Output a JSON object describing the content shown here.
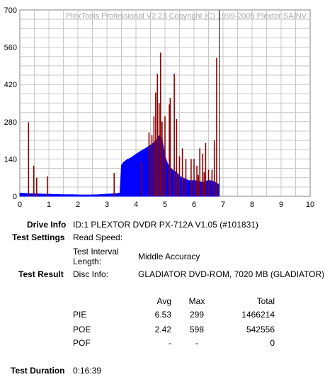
{
  "chart_data": {
    "type": "bar",
    "title": "PlexTools Professional V2.23 Copyright (C) 1999-2005 Plextor SA/NV",
    "xlabel": "",
    "ylabel": "",
    "xlim": [
      0,
      10
    ],
    "ylim": [
      0,
      700
    ],
    "x_ticks": [
      0,
      1,
      2,
      3,
      4,
      5,
      6,
      7,
      8,
      9,
      10
    ],
    "y_ticks": [
      0,
      140,
      280,
      420,
      560,
      700
    ],
    "grid": true,
    "series": [
      {
        "name": "PIE",
        "color": "#0000ff",
        "x": [
          0.0,
          0.3,
          0.6,
          0.9,
          1.2,
          1.5,
          1.8,
          2.1,
          2.4,
          2.7,
          3.0,
          3.3,
          3.45,
          3.5,
          3.55,
          3.6,
          3.7,
          3.8,
          3.9,
          4.0,
          4.1,
          4.2,
          4.3,
          4.4,
          4.5,
          4.6,
          4.7,
          4.8,
          4.9,
          5.0,
          5.1,
          5.2,
          5.3,
          5.4,
          5.5,
          5.6,
          5.7,
          5.8,
          5.9,
          6.0,
          6.1,
          6.2,
          6.3,
          6.4,
          6.5,
          6.6,
          6.7,
          6.8,
          6.85
        ],
        "values": [
          12,
          10,
          9,
          8,
          7,
          6,
          6,
          5,
          5,
          6,
          8,
          10,
          12,
          115,
          125,
          130,
          138,
          143,
          150,
          158,
          165,
          172,
          178,
          185,
          192,
          200,
          210,
          230,
          215,
          150,
          120,
          105,
          95,
          90,
          75,
          70,
          65,
          60,
          58,
          60,
          58,
          55,
          52,
          55,
          60,
          58,
          55,
          48,
          45
        ]
      },
      {
        "name": "POE",
        "color": "#8b0000",
        "x": [
          0.3,
          0.48,
          0.58,
          0.95,
          3.25,
          4.2,
          4.45,
          4.55,
          4.62,
          4.68,
          4.74,
          4.8,
          4.85,
          4.9,
          5.0,
          5.15,
          5.18,
          5.32,
          5.4,
          5.5,
          5.6,
          5.72,
          5.9,
          6.0,
          6.1,
          6.15,
          6.2,
          6.3,
          6.35,
          6.4,
          6.5,
          6.62,
          6.7,
          6.78
        ],
        "values": [
          278,
          115,
          70,
          75,
          88,
          130,
          240,
          230,
          300,
          390,
          460,
          350,
          540,
          280,
          300,
          345,
          370,
          460,
          290,
          150,
          180,
          140,
          140,
          140,
          115,
          80,
          180,
          160,
          90,
          200,
          100,
          100,
          210,
          520
        ]
      }
    ],
    "annotations": [
      {
        "type": "vertical-line",
        "x": 6.87
      }
    ]
  },
  "info": {
    "drive_info_label": "Drive Info",
    "drive_info_value": "ID:1 PLEXTOR DVDR PX-712A V1.05 (#101831)",
    "test_settings_label": "Test Settings",
    "read_speed_label": "Read Speed:",
    "test_interval_label_1": "Test Interval",
    "test_interval_label_2": "Length:",
    "test_interval_value": "Middle Accuracy",
    "test_result_label": "Test Result",
    "disc_info_label": "Disc Info:",
    "disc_info_value": "GLADIATOR DVD-ROM, 7020 MB (GLADIATOR)",
    "test_duration_label": "Test Duration",
    "test_duration_value": "0:16:39"
  },
  "results": {
    "headers": {
      "avg": "Avg",
      "max": "Max",
      "total": "Total"
    },
    "rows": [
      {
        "name": "PIE",
        "avg": "6.53",
        "max": "299",
        "total": "1466214"
      },
      {
        "name": "POE",
        "avg": "2.42",
        "max": "598",
        "total": "542556"
      },
      {
        "name": "POF",
        "avg": "-",
        "max": "-",
        "total": "0"
      }
    ]
  }
}
